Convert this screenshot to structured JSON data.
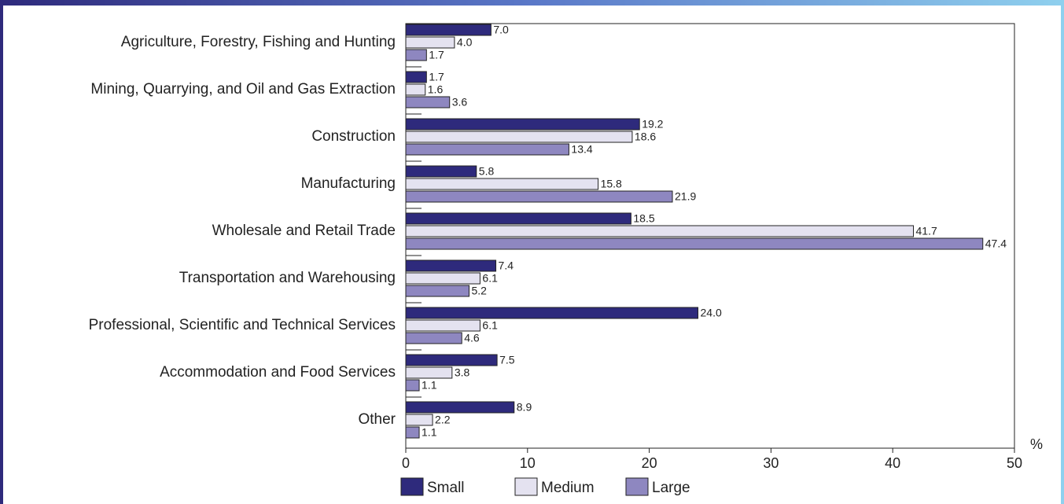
{
  "chart_data": {
    "type": "hbar",
    "categories": [
      "Agriculture, Forestry, Fishing and Hunting",
      "Mining, Quarrying, and Oil and Gas Extraction",
      "Construction",
      "Manufacturing",
      "Wholesale and Retail Trade",
      "Transportation and Warehousing",
      "Professional, Scientific and Technical Services",
      "Accommodation and Food Services",
      "Other"
    ],
    "series": [
      {
        "name": "Small",
        "color": "#2e2a7c",
        "values": [
          7.0,
          1.7,
          19.2,
          5.8,
          18.5,
          7.4,
          24.0,
          7.5,
          8.9
        ],
        "value_labels": [
          "7.0",
          "1.7",
          "19.2",
          "5.8",
          "18.5",
          "7.4",
          "24.0",
          "7.5",
          "8.9"
        ]
      },
      {
        "name": "Medium",
        "color": "#e4e2f0",
        "values": [
          4.0,
          1.6,
          18.6,
          15.8,
          41.7,
          6.1,
          6.1,
          3.8,
          2.2
        ],
        "value_labels": [
          "4.0",
          "1.6",
          "18.6",
          "15.8",
          "41.7",
          "6.1",
          "6.1",
          "3.8",
          "2.2"
        ]
      },
      {
        "name": "Large",
        "color": "#8e87c0",
        "values": [
          1.7,
          3.6,
          13.4,
          21.9,
          47.4,
          5.2,
          4.6,
          1.1,
          1.1
        ],
        "value_labels": [
          "1.7",
          "3.6",
          "13.4",
          "21.9",
          "47.4",
          "5.2",
          "4.6",
          "1.1",
          "1.1"
        ]
      }
    ],
    "x_label": "%",
    "xlim": [
      0,
      50
    ],
    "xticks": [
      0,
      10,
      20,
      30,
      40,
      50
    ]
  }
}
